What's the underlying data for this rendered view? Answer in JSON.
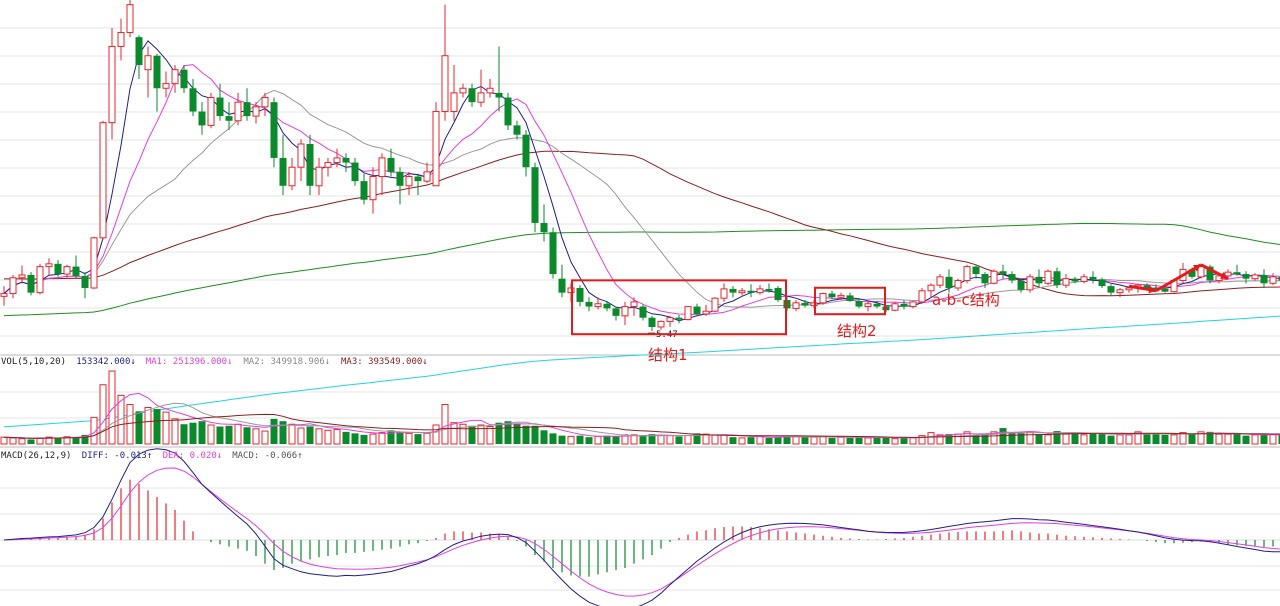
{
  "colors": {
    "up": "#e8262d",
    "down": "#0a8a2a",
    "ma5": "#1f1f8f",
    "ma10": "#e23fe0",
    "ma20": "#9a9a9a",
    "ma60": "#8b2020",
    "ma120": "#1f8f1f",
    "ma250": "#21d3e8",
    "annotation": "#e41b1b",
    "grid": "#e6e6e6"
  },
  "annotations": [
    {
      "label": "结构1",
      "box": [
        64,
        86
      ],
      "note_at": 72
    },
    {
      "label": "结构2",
      "box": [
        91,
        97
      ],
      "note_at": 93
    },
    {
      "label": "a-b-c结构",
      "note_at": 104
    }
  ],
  "low_marker": "5.47",
  "chart_data": {
    "type": "candlestick",
    "price_range": [
      5.0,
      12.6
    ],
    "vol_range": [
      0,
      1000000
    ],
    "macd_range": [
      -0.7,
      0.6
    ],
    "candles": [
      [
        6.22,
        6.44,
        6.02,
        6.28
      ],
      [
        6.28,
        6.68,
        6.18,
        6.62
      ],
      [
        6.62,
        6.88,
        6.5,
        6.68
      ],
      [
        6.68,
        6.74,
        6.24,
        6.3
      ],
      [
        6.3,
        6.92,
        6.26,
        6.86
      ],
      [
        6.86,
        7.04,
        6.68,
        6.92
      ],
      [
        6.92,
        7.0,
        6.64,
        6.7
      ],
      [
        6.7,
        6.9,
        6.62,
        6.86
      ],
      [
        6.86,
        7.1,
        6.6,
        6.66
      ],
      [
        6.66,
        6.74,
        6.18,
        6.4
      ],
      [
        6.4,
        7.5,
        6.38,
        7.48
      ],
      [
        7.48,
        10.0,
        7.44,
        9.96
      ],
      [
        9.96,
        12.0,
        9.6,
        11.6
      ],
      [
        11.6,
        12.2,
        11.3,
        11.9
      ],
      [
        11.9,
        12.6,
        11.8,
        12.5
      ],
      [
        11.8,
        11.84,
        10.9,
        11.2
      ],
      [
        11.1,
        11.6,
        10.5,
        11.4
      ],
      [
        11.4,
        11.44,
        10.2,
        10.7
      ],
      [
        10.7,
        11.06,
        10.5,
        10.8
      ],
      [
        10.8,
        11.2,
        10.6,
        11.1
      ],
      [
        11.1,
        11.2,
        10.6,
        10.7
      ],
      [
        10.7,
        10.9,
        10.1,
        10.2
      ],
      [
        10.2,
        10.4,
        9.7,
        9.9
      ],
      [
        9.9,
        10.6,
        9.84,
        10.5
      ],
      [
        10.5,
        10.8,
        10.0,
        10.1
      ],
      [
        10.1,
        10.4,
        9.8,
        10.0
      ],
      [
        10.0,
        10.6,
        9.9,
        10.4
      ],
      [
        10.4,
        10.7,
        10.0,
        10.1
      ],
      [
        10.1,
        10.4,
        9.94,
        10.3
      ],
      [
        10.3,
        10.6,
        10.1,
        10.5
      ],
      [
        10.4,
        10.5,
        9.0,
        9.2
      ],
      [
        9.2,
        9.7,
        8.4,
        8.6
      ],
      [
        8.6,
        9.2,
        8.5,
        9.0
      ],
      [
        9.0,
        9.6,
        8.7,
        9.5
      ],
      [
        9.5,
        9.7,
        8.4,
        8.6
      ],
      [
        8.6,
        9.2,
        8.4,
        9.0
      ],
      [
        9.0,
        9.2,
        8.8,
        9.1
      ],
      [
        9.1,
        9.4,
        9.0,
        9.2
      ],
      [
        9.2,
        9.3,
        8.9,
        9.1
      ],
      [
        9.1,
        9.2,
        8.6,
        8.7
      ],
      [
        8.7,
        8.86,
        8.2,
        8.3
      ],
      [
        8.3,
        9.0,
        8.0,
        8.8
      ],
      [
        8.8,
        9.3,
        8.4,
        9.2
      ],
      [
        9.2,
        9.4,
        8.8,
        8.9
      ],
      [
        8.9,
        9.0,
        8.2,
        8.6
      ],
      [
        8.6,
        8.9,
        8.4,
        8.8
      ],
      [
        8.8,
        8.86,
        8.4,
        8.7
      ],
      [
        8.7,
        9.1,
        8.66,
        8.9
      ],
      [
        8.6,
        10.4,
        8.6,
        10.2
      ],
      [
        10.2,
        12.5,
        10.0,
        11.4
      ],
      [
        10.2,
        11.2,
        10.0,
        10.6
      ],
      [
        10.6,
        10.8,
        10.5,
        10.7
      ],
      [
        10.7,
        10.8,
        10.3,
        10.4
      ],
      [
        10.4,
        11.1,
        10.3,
        10.6
      ],
      [
        10.6,
        10.9,
        10.5,
        10.7
      ],
      [
        10.6,
        11.6,
        10.2,
        10.5
      ],
      [
        10.5,
        10.6,
        9.8,
        9.9
      ],
      [
        9.9,
        10.0,
        9.6,
        9.7
      ],
      [
        9.7,
        9.8,
        8.8,
        9.0
      ],
      [
        9.0,
        9.1,
        7.6,
        7.8
      ],
      [
        7.8,
        8.2,
        7.4,
        7.6
      ],
      [
        7.6,
        7.7,
        6.6,
        6.7
      ],
      [
        6.6,
        6.9,
        6.2,
        6.3
      ],
      [
        6.3,
        6.5,
        6.1,
        6.4
      ],
      [
        6.4,
        6.46,
        6.0,
        6.1
      ],
      [
        6.1,
        6.2,
        5.9,
        6.0
      ],
      [
        6.0,
        6.2,
        5.94,
        6.06
      ],
      [
        6.06,
        6.1,
        5.9,
        5.96
      ],
      [
        5.96,
        6.0,
        5.7,
        5.8
      ],
      [
        5.8,
        6.1,
        5.6,
        6.0
      ],
      [
        6.0,
        6.2,
        5.8,
        6.1
      ],
      [
        6.0,
        6.04,
        5.7,
        5.76
      ],
      [
        5.76,
        5.8,
        5.47,
        5.56
      ],
      [
        5.56,
        5.7,
        5.5,
        5.68
      ],
      [
        5.68,
        5.8,
        5.56,
        5.76
      ],
      [
        5.76,
        5.82,
        5.64,
        5.72
      ],
      [
        5.72,
        6.0,
        5.7,
        6.0
      ],
      [
        6.0,
        6.06,
        5.8,
        5.84
      ],
      [
        5.84,
        6.04,
        5.8,
        5.9
      ],
      [
        5.9,
        6.2,
        5.88,
        6.18
      ],
      [
        6.18,
        6.5,
        6.1,
        6.38
      ],
      [
        6.38,
        6.44,
        6.2,
        6.3
      ],
      [
        6.3,
        6.4,
        6.24,
        6.34
      ],
      [
        6.34,
        6.48,
        6.2,
        6.3
      ],
      [
        6.3,
        6.46,
        6.26,
        6.38
      ],
      [
        6.38,
        6.5,
        6.3,
        6.34
      ],
      [
        6.4,
        6.44,
        6.1,
        6.14
      ],
      [
        6.14,
        6.2,
        5.9,
        5.96
      ],
      [
        5.96,
        6.14,
        5.9,
        6.08
      ],
      [
        6.08,
        6.14,
        5.98,
        6.02
      ],
      [
        6.02,
        6.14,
        5.96,
        6.08
      ],
      [
        6.08,
        6.3,
        6.04,
        6.28
      ],
      [
        6.28,
        6.34,
        6.16,
        6.2
      ],
      [
        6.2,
        6.3,
        6.14,
        6.24
      ],
      [
        6.24,
        6.3,
        6.1,
        6.12
      ],
      [
        6.12,
        6.16,
        5.96,
        6.0
      ],
      [
        6.0,
        6.1,
        5.9,
        6.06
      ],
      [
        6.06,
        6.12,
        5.96,
        6.0
      ],
      [
        6.0,
        6.02,
        5.88,
        5.92
      ],
      [
        5.92,
        6.1,
        5.9,
        6.06
      ],
      [
        6.06,
        6.14,
        5.94,
        6.0
      ],
      [
        6.0,
        6.12,
        5.96,
        6.1
      ],
      [
        6.1,
        6.4,
        6.06,
        6.34
      ],
      [
        6.34,
        6.5,
        6.2,
        6.46
      ],
      [
        6.46,
        6.7,
        6.4,
        6.64
      ],
      [
        6.64,
        6.8,
        6.3,
        6.4
      ],
      [
        6.4,
        6.6,
        6.34,
        6.56
      ],
      [
        6.56,
        6.9,
        6.5,
        6.86
      ],
      [
        6.86,
        6.9,
        6.6,
        6.7
      ],
      [
        6.7,
        6.74,
        6.4,
        6.5
      ],
      [
        6.5,
        6.8,
        6.48,
        6.76
      ],
      [
        6.76,
        6.9,
        6.6,
        6.7
      ],
      [
        6.7,
        6.76,
        6.5,
        6.56
      ],
      [
        6.56,
        6.6,
        6.3,
        6.36
      ],
      [
        6.36,
        6.7,
        6.3,
        6.64
      ],
      [
        6.64,
        6.8,
        6.4,
        6.5
      ],
      [
        6.5,
        6.8,
        6.46,
        6.76
      ],
      [
        6.76,
        6.84,
        6.4,
        6.46
      ],
      [
        6.46,
        6.7,
        6.4,
        6.6
      ],
      [
        6.6,
        6.64,
        6.5,
        6.54
      ],
      [
        6.54,
        6.7,
        6.5,
        6.64
      ],
      [
        6.64,
        6.76,
        6.5,
        6.58
      ],
      [
        6.58,
        6.62,
        6.4,
        6.44
      ],
      [
        6.44,
        6.48,
        6.24,
        6.3
      ],
      [
        6.3,
        6.4,
        6.2,
        6.36
      ],
      [
        6.36,
        6.44,
        6.3,
        6.4
      ],
      [
        6.4,
        6.5,
        6.3,
        6.46
      ],
      [
        6.46,
        6.5,
        6.36,
        6.4
      ],
      [
        6.4,
        6.48,
        6.34,
        6.38
      ],
      [
        6.38,
        6.44,
        6.3,
        6.32
      ],
      [
        6.32,
        6.6,
        6.3,
        6.56
      ],
      [
        6.56,
        6.94,
        6.5,
        6.8
      ],
      [
        6.8,
        6.84,
        6.6,
        6.64
      ],
      [
        6.64,
        6.9,
        6.6,
        6.86
      ],
      [
        6.86,
        6.9,
        6.5,
        6.56
      ],
      [
        6.56,
        6.7,
        6.5,
        6.66
      ],
      [
        6.66,
        6.8,
        6.6,
        6.74
      ],
      [
        6.74,
        6.9,
        6.66,
        6.7
      ],
      [
        6.7,
        6.76,
        6.5,
        6.6
      ],
      [
        6.6,
        6.72,
        6.56,
        6.68
      ],
      [
        6.68,
        6.8,
        6.4,
        6.5
      ],
      [
        6.5,
        6.72,
        6.46,
        6.64
      ],
      [
        6.64,
        6.74,
        6.5,
        6.56
      ],
      [
        6.56,
        6.64,
        6.36,
        6.4
      ],
      [
        6.4,
        6.5,
        6.36,
        6.46
      ],
      [
        6.46,
        6.56,
        6.4,
        6.5
      ],
      [
        6.5,
        6.58,
        6.44,
        6.48
      ],
      [
        6.48,
        6.6,
        6.4,
        6.54
      ]
    ],
    "volume": [
      90000,
      80000,
      70000,
      60000,
      80000,
      90000,
      85000,
      95000,
      90000,
      120000,
      350000,
      780000,
      960000,
      640000,
      520000,
      430000,
      480000,
      460000,
      420000,
      330000,
      260000,
      280000,
      300000,
      250000,
      230000,
      240000,
      260000,
      220000,
      200000,
      170000,
      330000,
      300000,
      260000,
      210000,
      230000,
      200000,
      180000,
      190000,
      160000,
      140000,
      120000,
      130000,
      150000,
      180000,
      160000,
      140000,
      130000,
      140000,
      250000,
      520000,
      280000,
      260000,
      240000,
      250000,
      230000,
      280000,
      300000,
      270000,
      240000,
      240000,
      180000,
      140000,
      110000,
      100000,
      110000,
      90000,
      100000,
      110000,
      100000,
      120000,
      120000,
      110000,
      130000,
      110000,
      110000,
      100000,
      110000,
      140000,
      130000,
      120000,
      120000,
      90000,
      80000,
      90000,
      100000,
      80000,
      90000,
      110000,
      100000,
      90000,
      90000,
      100000,
      80000,
      90000,
      80000,
      90000,
      80000,
      90000,
      80000,
      70000,
      80000,
      80000,
      110000,
      150000,
      120000,
      130000,
      130000,
      160000,
      120000,
      130000,
      160000,
      210000,
      140000,
      150000,
      160000,
      130000,
      120000,
      170000,
      130000,
      140000,
      120000,
      140000,
      140000,
      110000,
      120000,
      120000,
      160000,
      140000,
      140000,
      120000,
      120000,
      150000,
      130000,
      160000,
      160000,
      130000,
      130000,
      130000,
      110000,
      120000,
      120000,
      130000,
      120000,
      110000,
      100000,
      110000,
      100000,
      130000
    ],
    "macd_hist": [
      0.0,
      0.01,
      0.015,
      0.015,
      0.018,
      0.02,
      0.02,
      0.025,
      0.03,
      0.05,
      0.1,
      0.2,
      0.35,
      0.48,
      0.56,
      0.52,
      0.46,
      0.4,
      0.34,
      0.28,
      0.18,
      0.08,
      0.0,
      -0.02,
      -0.04,
      -0.06,
      -0.08,
      -0.1,
      -0.15,
      -0.22,
      -0.28,
      -0.26,
      -0.22,
      -0.2,
      -0.18,
      -0.16,
      -0.15,
      -0.14,
      -0.12,
      -0.12,
      -0.11,
      -0.1,
      -0.09,
      -0.08,
      -0.06,
      -0.04,
      -0.03,
      -0.01,
      0.02,
      0.06,
      0.08,
      0.08,
      0.07,
      0.07,
      0.06,
      0.05,
      0.03,
      -0.01,
      -0.06,
      -0.14,
      -0.2,
      -0.26,
      -0.3,
      -0.33,
      -0.34,
      -0.34,
      -0.32,
      -0.3,
      -0.28,
      -0.26,
      -0.22,
      -0.18,
      -0.14,
      -0.08,
      -0.02,
      0.02,
      0.05,
      0.08,
      0.09,
      0.11,
      0.12,
      0.125,
      0.125,
      0.12,
      0.11,
      0.1,
      0.09,
      0.08,
      0.07,
      0.06,
      0.05,
      0.04,
      0.03,
      0.02,
      0.015,
      0.01,
      0.005,
      0.005,
      0.01,
      0.015,
      0.02,
      0.03,
      0.04,
      0.05,
      0.06,
      0.07,
      0.075,
      0.08,
      0.08,
      0.078,
      0.08,
      0.085,
      0.09,
      0.08,
      0.07,
      0.06,
      0.06,
      0.05,
      0.04,
      0.035,
      0.03,
      0.025,
      0.02,
      0.015,
      0.01,
      0.005,
      0.0,
      -0.01,
      -0.02,
      -0.03,
      -0.03,
      -0.025,
      -0.02,
      -0.015,
      -0.02,
      -0.03,
      -0.04,
      -0.05,
      -0.055,
      -0.06,
      -0.066,
      -0.06,
      -0.05,
      -0.04,
      -0.04,
      -0.05,
      -0.06,
      -0.066
    ]
  },
  "legends": {
    "vol": [
      {
        "text": "VOL(5,10,20)",
        "color": "#222222"
      },
      {
        "text": "153342.000↓",
        "color": "#1f1f8f"
      },
      {
        "text": "MA1: 251396.000↓",
        "color": "#e23fe0"
      },
      {
        "text": "MA2: 349918.906↓",
        "color": "#888888"
      },
      {
        "text": "MA3: 393549.000↓",
        "color": "#8b2020"
      }
    ],
    "macd": [
      {
        "text": "MACD(26,12,9)",
        "color": "#222222"
      },
      {
        "text": "DIFF: -0.013↑",
        "color": "#1f1f8f"
      },
      {
        "text": "DEA: 0.020↓",
        "color": "#e23fe0"
      },
      {
        "text": "MACD: -0.066↑",
        "color": "#555555"
      }
    ]
  }
}
